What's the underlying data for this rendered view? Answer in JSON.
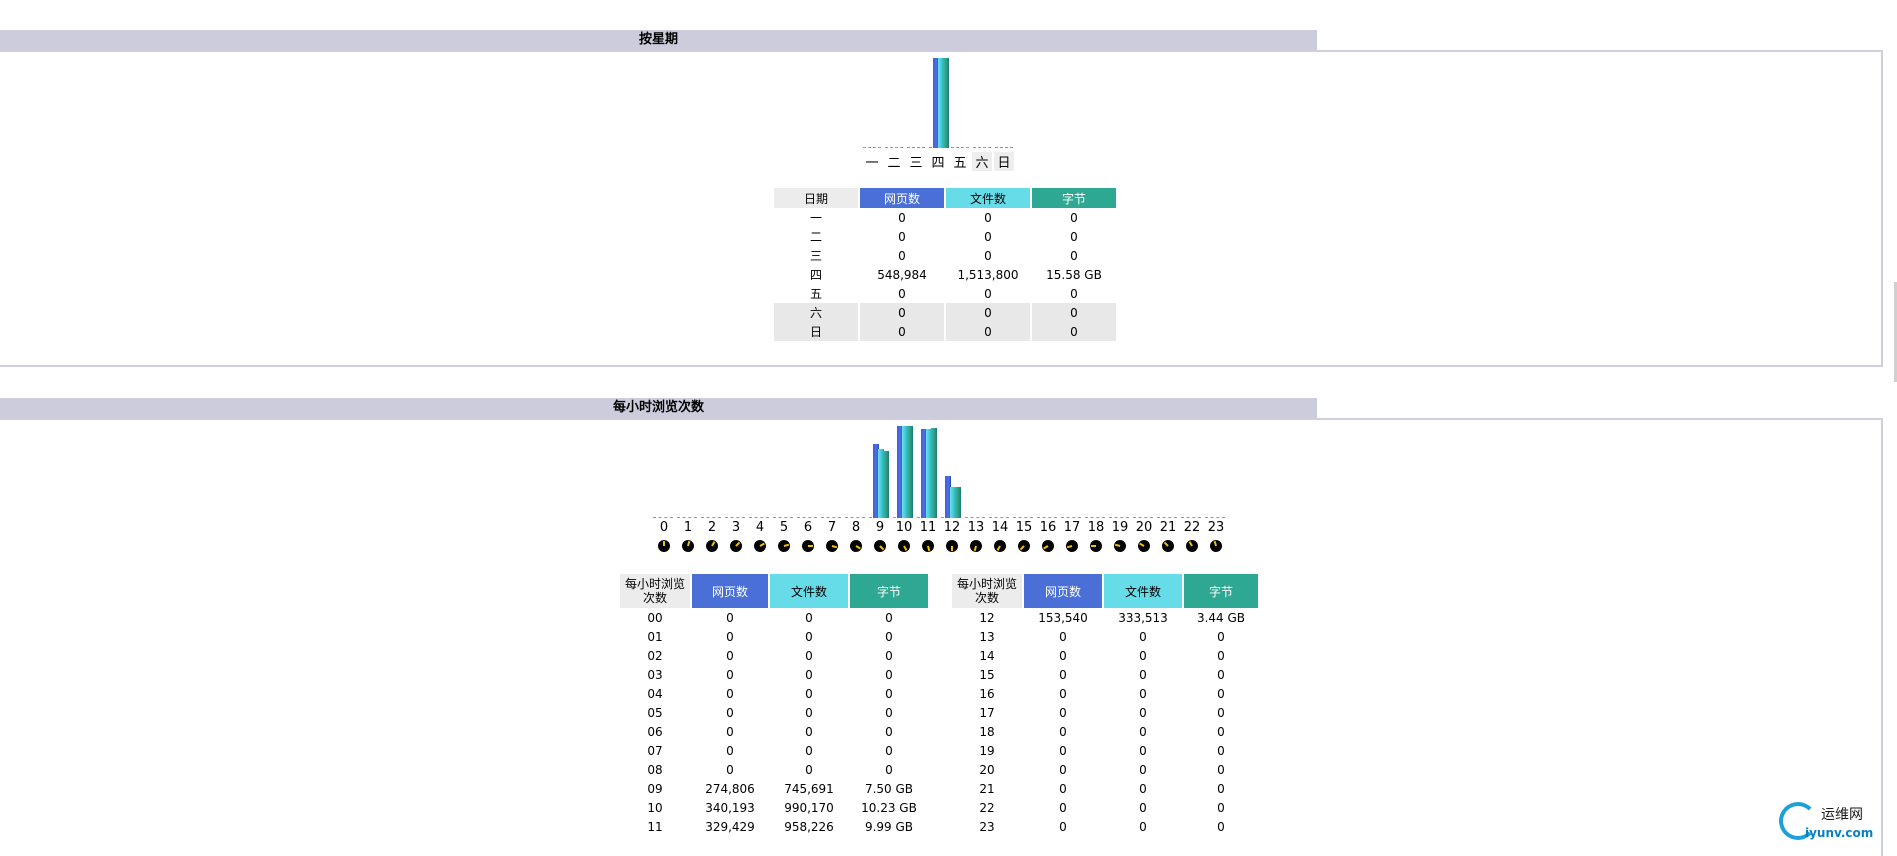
{
  "weekday_section": {
    "title": "按星期",
    "chart_data": {
      "type": "bar",
      "categories": [
        "一",
        "二",
        "三",
        "四",
        "五",
        "六",
        "日"
      ],
      "weekend": [
        "六",
        "日"
      ],
      "series": [
        {
          "name": "网页数",
          "values": [
            0,
            0,
            0,
            548984,
            0,
            0,
            0
          ]
        },
        {
          "name": "文件数",
          "values": [
            0,
            0,
            0,
            1513800,
            0,
            0,
            0
          ]
        },
        {
          "name": "字节",
          "values": [
            0,
            0,
            0,
            15.58,
            0,
            0,
            0
          ]
        }
      ],
      "colors": {
        "page": "#4a70d8",
        "file": "#66dce8",
        "byte": "#2ea892"
      }
    },
    "table": {
      "headers": [
        "日期",
        "网页数",
        "文件数",
        "字节"
      ],
      "rows": [
        {
          "label": "一",
          "pages": "0",
          "files": "0",
          "bytes": "0"
        },
        {
          "label": "二",
          "pages": "0",
          "files": "0",
          "bytes": "0"
        },
        {
          "label": "三",
          "pages": "0",
          "files": "0",
          "bytes": "0"
        },
        {
          "label": "四",
          "pages": "548,984",
          "files": "1,513,800",
          "bytes": "15.58 GB"
        },
        {
          "label": "五",
          "pages": "0",
          "files": "0",
          "bytes": "0"
        },
        {
          "label": "六",
          "pages": "0",
          "files": "0",
          "bytes": "0"
        },
        {
          "label": "日",
          "pages": "0",
          "files": "0",
          "bytes": "0"
        }
      ]
    }
  },
  "hourly_section": {
    "title": "每小时浏览次数",
    "chart_data": {
      "type": "bar",
      "categories": [
        "0",
        "1",
        "2",
        "3",
        "4",
        "5",
        "6",
        "7",
        "8",
        "9",
        "10",
        "11",
        "12",
        "13",
        "14",
        "15",
        "16",
        "17",
        "18",
        "19",
        "20",
        "21",
        "22",
        "23"
      ],
      "series": [
        {
          "name": "网页数",
          "values": [
            0,
            0,
            0,
            0,
            0,
            0,
            0,
            0,
            0,
            274806,
            340193,
            329429,
            153540,
            0,
            0,
            0,
            0,
            0,
            0,
            0,
            0,
            0,
            0,
            0
          ]
        },
        {
          "name": "文件数",
          "values": [
            0,
            0,
            0,
            0,
            0,
            0,
            0,
            0,
            0,
            745691,
            990170,
            958226,
            333513,
            0,
            0,
            0,
            0,
            0,
            0,
            0,
            0,
            0,
            0,
            0
          ]
        },
        {
          "name": "字节",
          "values": [
            0,
            0,
            0,
            0,
            0,
            0,
            0,
            0,
            0,
            7.5,
            10.23,
            9.99,
            3.44,
            0,
            0,
            0,
            0,
            0,
            0,
            0,
            0,
            0,
            0,
            0
          ]
        }
      ]
    },
    "table_headers": [
      "每小时浏览次数",
      "网页数",
      "文件数",
      "字节"
    ],
    "table_left": [
      {
        "label": "00",
        "pages": "0",
        "files": "0",
        "bytes": "0"
      },
      {
        "label": "01",
        "pages": "0",
        "files": "0",
        "bytes": "0"
      },
      {
        "label": "02",
        "pages": "0",
        "files": "0",
        "bytes": "0"
      },
      {
        "label": "03",
        "pages": "0",
        "files": "0",
        "bytes": "0"
      },
      {
        "label": "04",
        "pages": "0",
        "files": "0",
        "bytes": "0"
      },
      {
        "label": "05",
        "pages": "0",
        "files": "0",
        "bytes": "0"
      },
      {
        "label": "06",
        "pages": "0",
        "files": "0",
        "bytes": "0"
      },
      {
        "label": "07",
        "pages": "0",
        "files": "0",
        "bytes": "0"
      },
      {
        "label": "08",
        "pages": "0",
        "files": "0",
        "bytes": "0"
      },
      {
        "label": "09",
        "pages": "274,806",
        "files": "745,691",
        "bytes": "7.50 GB"
      },
      {
        "label": "10",
        "pages": "340,193",
        "files": "990,170",
        "bytes": "10.23 GB"
      },
      {
        "label": "11",
        "pages": "329,429",
        "files": "958,226",
        "bytes": "9.99 GB"
      }
    ],
    "table_right": [
      {
        "label": "12",
        "pages": "153,540",
        "files": "333,513",
        "bytes": "3.44 GB"
      },
      {
        "label": "13",
        "pages": "0",
        "files": "0",
        "bytes": "0"
      },
      {
        "label": "14",
        "pages": "0",
        "files": "0",
        "bytes": "0"
      },
      {
        "label": "15",
        "pages": "0",
        "files": "0",
        "bytes": "0"
      },
      {
        "label": "16",
        "pages": "0",
        "files": "0",
        "bytes": "0"
      },
      {
        "label": "17",
        "pages": "0",
        "files": "0",
        "bytes": "0"
      },
      {
        "label": "18",
        "pages": "0",
        "files": "0",
        "bytes": "0"
      },
      {
        "label": "19",
        "pages": "0",
        "files": "0",
        "bytes": "0"
      },
      {
        "label": "20",
        "pages": "0",
        "files": "0",
        "bytes": "0"
      },
      {
        "label": "21",
        "pages": "0",
        "files": "0",
        "bytes": "0"
      },
      {
        "label": "22",
        "pages": "0",
        "files": "0",
        "bytes": "0"
      },
      {
        "label": "23",
        "pages": "0",
        "files": "0",
        "bytes": "0"
      }
    ],
    "clock_icon": "clock-icon"
  },
  "watermark": {
    "cn": "运维网",
    "en": "iyunv.com"
  }
}
